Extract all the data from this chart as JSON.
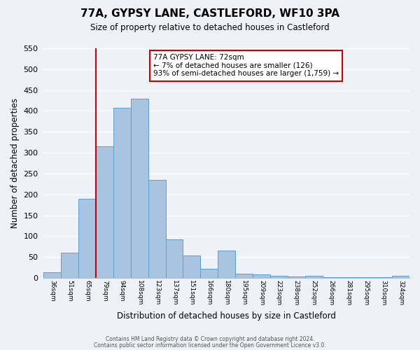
{
  "title": "77A, GYPSY LANE, CASTLEFORD, WF10 3PA",
  "subtitle": "Size of property relative to detached houses in Castleford",
  "xlabel": "Distribution of detached houses by size in Castleford",
  "ylabel": "Number of detached properties",
  "categories": [
    "36sqm",
    "51sqm",
    "65sqm",
    "79sqm",
    "94sqm",
    "108sqm",
    "123sqm",
    "137sqm",
    "151sqm",
    "166sqm",
    "180sqm",
    "195sqm",
    "209sqm",
    "223sqm",
    "238sqm",
    "252sqm",
    "266sqm",
    "281sqm",
    "295sqm",
    "310sqm",
    "324sqm"
  ],
  "values": [
    13,
    60,
    190,
    315,
    408,
    430,
    235,
    93,
    53,
    22,
    65,
    10,
    8,
    5,
    3,
    5,
    1,
    1,
    1,
    1,
    5
  ],
  "bar_color": "#a8c4e0",
  "bar_edge_color": "#5a9fd4",
  "background_color": "#eef2f7",
  "grid_color": "#ffffff",
  "vline_color": "#cc0000",
  "annotation_title": "77A GYPSY LANE: 72sqm",
  "annotation_line1": "← 7% of detached houses are smaller (126)",
  "annotation_line2": "93% of semi-detached houses are larger (1,759) →",
  "annotation_box_color": "#ffffff",
  "annotation_box_edge": "#cc0000",
  "ylim": [
    0,
    550
  ],
  "yticks": [
    0,
    50,
    100,
    150,
    200,
    250,
    300,
    350,
    400,
    450,
    500,
    550
  ],
  "footnote1": "Contains HM Land Registry data © Crown copyright and database right 2024.",
  "footnote2": "Contains public sector information licensed under the Open Government Licence v3.0."
}
